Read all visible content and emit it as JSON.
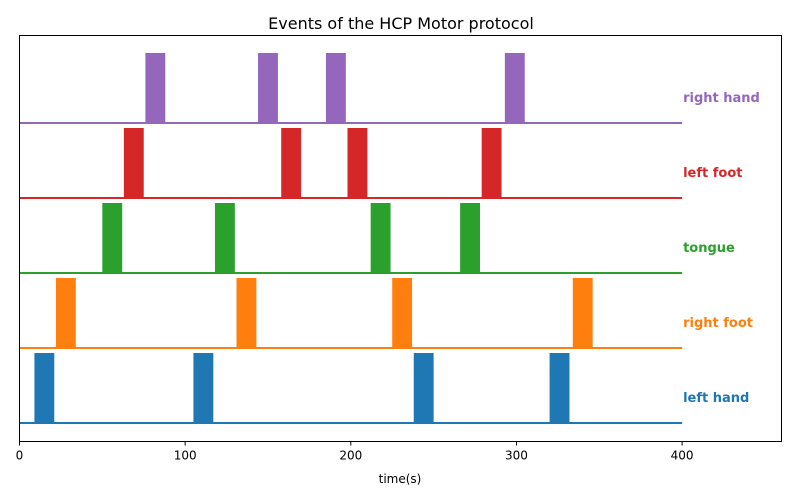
{
  "chart_data": {
    "type": "event-timeline",
    "title": "Events of the HCP Motor protocol",
    "xlabel": "time(s)",
    "ylabel": "",
    "xlim": [
      0,
      460
    ],
    "baseline_end": 400,
    "x_ticks": [
      0,
      100,
      200,
      300,
      400
    ],
    "block_duration": 12,
    "grid": false,
    "legend": "inline-right",
    "series": [
      {
        "name": "left hand",
        "color": "#1f77b4",
        "onsets": [
          9,
          105,
          238,
          320
        ]
      },
      {
        "name": "right foot",
        "color": "#ff7f0e",
        "onsets": [
          22,
          131,
          225,
          334
        ]
      },
      {
        "name": "tongue",
        "color": "#2ca02c",
        "onsets": [
          50,
          118,
          212,
          266
        ]
      },
      {
        "name": "left foot",
        "color": "#d62728",
        "onsets": [
          63,
          158,
          198,
          279
        ]
      },
      {
        "name": "right hand",
        "color": "#9467bd",
        "onsets": [
          76,
          144,
          185,
          293
        ]
      }
    ]
  }
}
